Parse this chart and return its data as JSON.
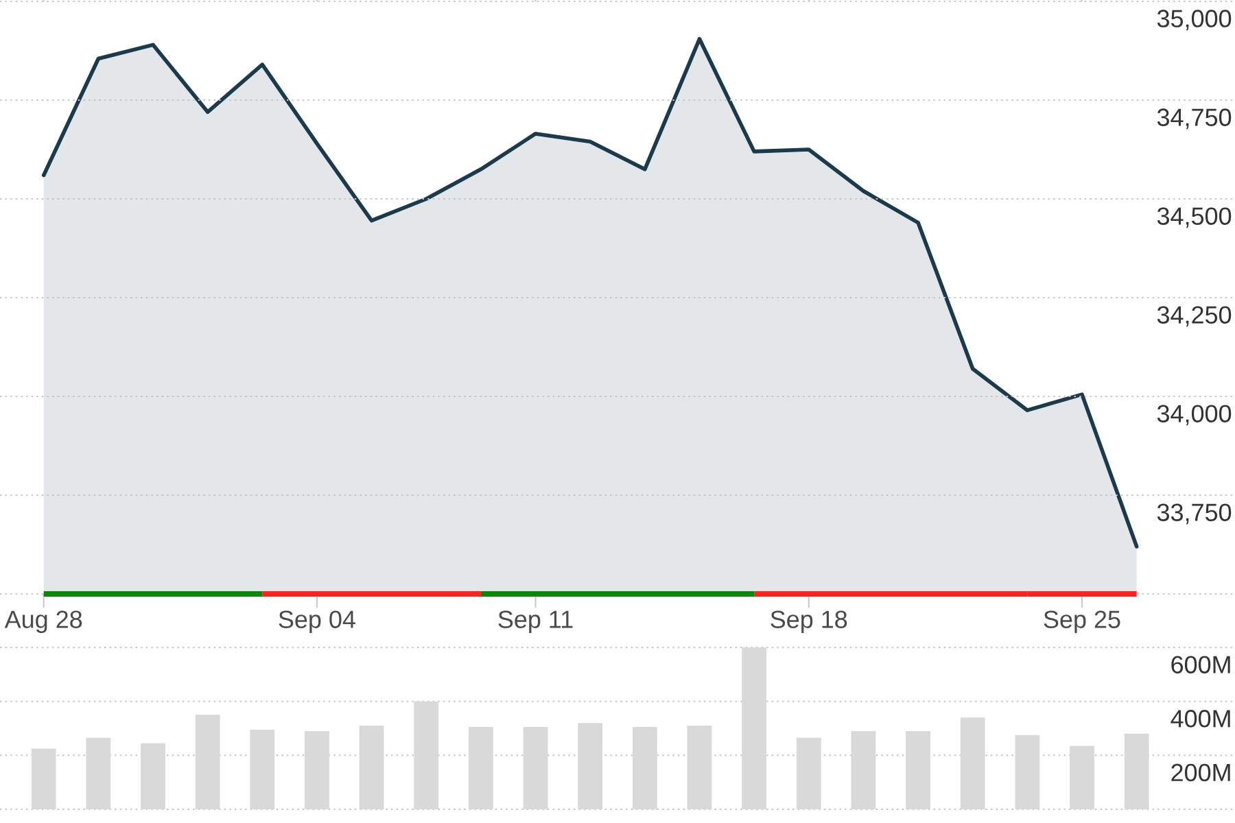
{
  "chart_data": [
    {
      "type": "area",
      "categories": [
        "Aug 28",
        null,
        null,
        null,
        null,
        "Sep 04",
        null,
        null,
        null,
        "Sep 11",
        null,
        null,
        null,
        null,
        "Sep 18",
        null,
        null,
        null,
        null,
        "Sep 25",
        null
      ],
      "values": [
        34560,
        34855,
        34890,
        34720,
        34840,
        34640,
        34445,
        34500,
        34575,
        34665,
        34645,
        34575,
        34905,
        34620,
        34625,
        34520,
        34440,
        34070,
        33965,
        34005,
        33620
      ],
      "color": "#1b3a4b",
      "ylim": [
        33500,
        35000
      ],
      "yticks": [
        {
          "value": 33500,
          "label": null
        },
        {
          "value": 33750,
          "label": "33,750"
        },
        {
          "value": 34000,
          "label": "34,000"
        },
        {
          "value": 34250,
          "label": "34,250"
        },
        {
          "value": 34500,
          "label": "34,500"
        },
        {
          "value": 34750,
          "label": "34,750"
        },
        {
          "value": 35000,
          "label": "35,000"
        }
      ],
      "grid": "y"
    },
    {
      "type": "bar",
      "categories": [
        null,
        null,
        null,
        null,
        null,
        null,
        null,
        null,
        null,
        null,
        null,
        null,
        null,
        null,
        null,
        null,
        null,
        null,
        null,
        null,
        null
      ],
      "values": [
        225,
        265,
        245,
        350,
        295,
        290,
        310,
        400,
        305,
        305,
        320,
        305,
        310,
        600,
        265,
        290,
        290,
        340,
        275,
        235,
        280
      ],
      "color": "#d9d9d9",
      "ylim": [
        0,
        600
      ],
      "yticks": [
        {
          "value": 0,
          "label": null
        },
        {
          "value": 200,
          "label": "200M"
        },
        {
          "value": 400,
          "label": "400M"
        },
        {
          "value": 600,
          "label": "600M"
        }
      ],
      "grid": "y",
      "tick_labels": "y"
    }
  ]
}
